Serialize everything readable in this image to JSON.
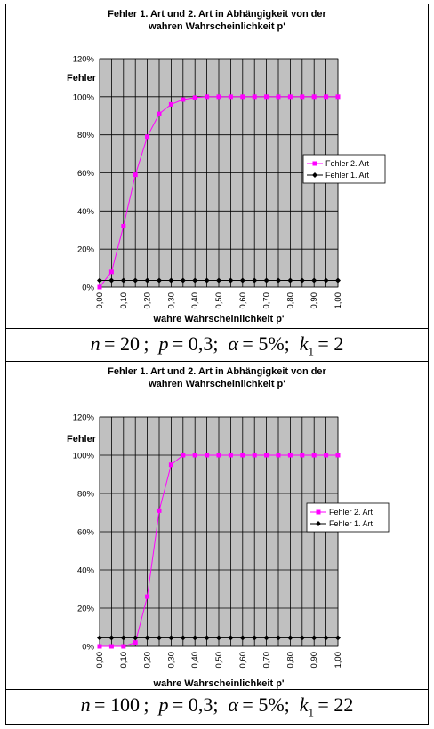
{
  "chart_data": [
    {
      "type": "line",
      "title": "Fehler 1. Art und 2. Art in Abhängigkeit von der wahren Wahrscheinlichkeit p'",
      "title_lines": [
        "Fehler 1. Art und 2. Art in Abhängigkeit von der",
        "wahren Wahrscheinlichkeit p'"
      ],
      "xlabel": "wahre Wahrscheinlichkeit p'",
      "ylabel": "Fehler",
      "ylim": [
        0,
        1.2
      ],
      "yticks": [
        "0%",
        "20%",
        "40%",
        "60%",
        "80%",
        "100%",
        "120%"
      ],
      "x": [
        0.0,
        0.05,
        0.1,
        0.15,
        0.2,
        0.25,
        0.3,
        0.35,
        0.4,
        0.45,
        0.5,
        0.55,
        0.6,
        0.65,
        0.7,
        0.75,
        0.8,
        0.85,
        0.9,
        0.95,
        1.0
      ],
      "xtick_labels": [
        "0,00",
        "0,10",
        "0,20",
        "0,30",
        "0,40",
        "0,50",
        "0,60",
        "0,70",
        "0,80",
        "0,90",
        "1,00"
      ],
      "grid": true,
      "legend": "right",
      "series": [
        {
          "name": "Fehler 2. Art",
          "color": "#ff00ff",
          "values": [
            0.0,
            0.08,
            0.32,
            0.59,
            0.79,
            0.91,
            0.96,
            0.985,
            0.995,
            1.0,
            1.0,
            1.0,
            1.0,
            1.0,
            1.0,
            1.0,
            1.0,
            1.0,
            1.0,
            1.0,
            1.0
          ]
        },
        {
          "name": "Fehler 1. Art",
          "color": "#000000",
          "values": [
            0.035,
            0.035,
            0.035,
            0.035,
            0.035,
            0.035,
            0.035,
            0.035,
            0.035,
            0.035,
            0.035,
            0.035,
            0.035,
            0.035,
            0.035,
            0.035,
            0.035,
            0.035,
            0.035,
            0.035,
            0.035
          ]
        }
      ]
    },
    {
      "type": "line",
      "title": "Fehler 1. Art und 2. Art in Abhängigkeit von der wahren Wahrscheinlichkeit p'",
      "title_lines": [
        "Fehler 1. Art und 2. Art in Abhängigkeit von der",
        "wahren Wahrscheinlichkeit p'"
      ],
      "xlabel": "wahre Wahrscheinlichkeit p'",
      "ylabel": "Fehler",
      "ylim": [
        0,
        1.2
      ],
      "yticks": [
        "0%",
        "20%",
        "40%",
        "60%",
        "80%",
        "100%",
        "120%"
      ],
      "x": [
        0.0,
        0.05,
        0.1,
        0.15,
        0.2,
        0.25,
        0.3,
        0.35,
        0.4,
        0.45,
        0.5,
        0.55,
        0.6,
        0.65,
        0.7,
        0.75,
        0.8,
        0.85,
        0.9,
        0.95,
        1.0
      ],
      "xtick_labels": [
        "0,00",
        "0,10",
        "0,20",
        "0,30",
        "0,40",
        "0,50",
        "0,60",
        "0,70",
        "0,80",
        "0,90",
        "1,00"
      ],
      "grid": true,
      "legend": "right",
      "series": [
        {
          "name": "Fehler 2. Art",
          "color": "#ff00ff",
          "values": [
            0.0,
            0.0,
            0.0,
            0.02,
            0.26,
            0.71,
            0.95,
            1.0,
            1.0,
            1.0,
            1.0,
            1.0,
            1.0,
            1.0,
            1.0,
            1.0,
            1.0,
            1.0,
            1.0,
            1.0,
            1.0
          ]
        },
        {
          "name": "Fehler 1. Art",
          "color": "#000000",
          "values": [
            0.045,
            0.045,
            0.045,
            0.045,
            0.045,
            0.045,
            0.045,
            0.045,
            0.045,
            0.045,
            0.045,
            0.045,
            0.045,
            0.045,
            0.045,
            0.045,
            0.045,
            0.045,
            0.045,
            0.045,
            0.045
          ]
        }
      ]
    }
  ],
  "captions": [
    {
      "n": "20",
      "p": "0,3",
      "alpha": "5%",
      "k1": "2"
    },
    {
      "n": "100",
      "p": "0,3",
      "alpha": "5%",
      "k1": "22"
    }
  ]
}
